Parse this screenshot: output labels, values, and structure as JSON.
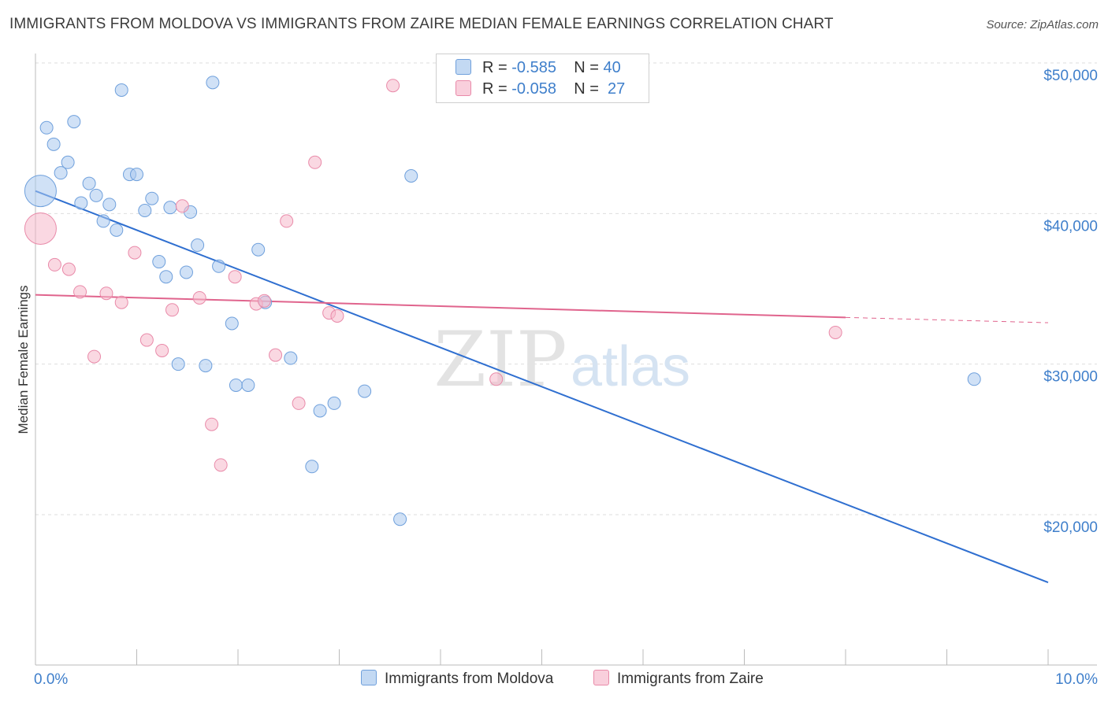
{
  "title": "IMMIGRANTS FROM MOLDOVA VS IMMIGRANTS FROM ZAIRE MEDIAN FEMALE EARNINGS CORRELATION CHART",
  "source": "Source: ZipAtlas.com",
  "watermark": {
    "zip": "ZIP",
    "atlas": "atlas"
  },
  "colors": {
    "moldova": "#a9c8ee",
    "moldova_stroke": "#6fa0dc",
    "moldova_line": "#2f6fd0",
    "zaire": "#f5b8cb",
    "zaire_stroke": "#e98aa9",
    "zaire_line": "#e0648d",
    "axis_text": "#3f7fcb",
    "grid": "#dddddd"
  },
  "legend": {
    "rows": [
      {
        "r_label": "R =",
        "r_value": "-0.585",
        "n_label": "N =",
        "n_value": "40"
      },
      {
        "r_label": "R =",
        "r_value": "-0.058",
        "n_label": "N =",
        "n_value": "27"
      }
    ]
  },
  "bottom_legend": {
    "moldova": "Immigrants from Moldova",
    "zaire": "Immigrants from Zaire"
  },
  "chart_data": {
    "type": "scatter",
    "title": "IMMIGRANTS FROM MOLDOVA VS IMMIGRANTS FROM ZAIRE MEDIAN FEMALE EARNINGS CORRELATION CHART",
    "xlabel": "",
    "ylabel": "Median Female Earnings",
    "xlim": [
      0,
      10
    ],
    "ylim": [
      10000,
      52000
    ],
    "x_tick_labels": [
      "0.0%",
      "10.0%"
    ],
    "y_ticks": [
      20000,
      30000,
      40000,
      50000
    ],
    "y_tick_labels": [
      "$20,000",
      "$30,000",
      "$40,000",
      "$50,000"
    ],
    "series": [
      {
        "name": "Immigrants from Moldova",
        "r": -0.585,
        "n": 40,
        "trend": {
          "x": [
            0.0,
            10.0
          ],
          "y": [
            41500,
            15500
          ]
        },
        "points": [
          {
            "x": 0.05,
            "y": 41500,
            "big": 1
          },
          {
            "x": 0.11,
            "y": 45700
          },
          {
            "x": 0.18,
            "y": 44600
          },
          {
            "x": 0.38,
            "y": 46100
          },
          {
            "x": 0.85,
            "y": 48200
          },
          {
            "x": 1.75,
            "y": 48700
          },
          {
            "x": 0.25,
            "y": 42700
          },
          {
            "x": 0.32,
            "y": 43400
          },
          {
            "x": 0.53,
            "y": 42000
          },
          {
            "x": 0.6,
            "y": 41200
          },
          {
            "x": 0.45,
            "y": 40700
          },
          {
            "x": 0.73,
            "y": 40600
          },
          {
            "x": 0.93,
            "y": 42600
          },
          {
            "x": 1.0,
            "y": 42600
          },
          {
            "x": 1.15,
            "y": 41000
          },
          {
            "x": 1.08,
            "y": 40200
          },
          {
            "x": 1.33,
            "y": 40400
          },
          {
            "x": 1.53,
            "y": 40100
          },
          {
            "x": 0.67,
            "y": 39500
          },
          {
            "x": 0.8,
            "y": 38900
          },
          {
            "x": 1.6,
            "y": 37900
          },
          {
            "x": 2.2,
            "y": 37600
          },
          {
            "x": 1.22,
            "y": 36800
          },
          {
            "x": 1.81,
            "y": 36500
          },
          {
            "x": 1.29,
            "y": 35800
          },
          {
            "x": 1.49,
            "y": 36100
          },
          {
            "x": 2.27,
            "y": 34100
          },
          {
            "x": 1.94,
            "y": 32700
          },
          {
            "x": 2.52,
            "y": 30400
          },
          {
            "x": 1.41,
            "y": 30000
          },
          {
            "x": 1.68,
            "y": 29900
          },
          {
            "x": 1.98,
            "y": 28600
          },
          {
            "x": 2.1,
            "y": 28600
          },
          {
            "x": 3.25,
            "y": 28200
          },
          {
            "x": 2.95,
            "y": 27400
          },
          {
            "x": 2.81,
            "y": 26900
          },
          {
            "x": 2.73,
            "y": 23200
          },
          {
            "x": 3.6,
            "y": 19700
          },
          {
            "x": 3.71,
            "y": 42500
          },
          {
            "x": 9.27,
            "y": 29000
          }
        ]
      },
      {
        "name": "Immigrants from Zaire",
        "r": -0.058,
        "n": 27,
        "trend": {
          "x": [
            0.0,
            8.0
          ],
          "y": [
            34600,
            33100
          ]
        },
        "trend_dashed": {
          "x": [
            8.0,
            10.0
          ],
          "y": [
            33100,
            32750
          ]
        },
        "points": [
          {
            "x": 0.05,
            "y": 39000,
            "big": 1
          },
          {
            "x": 3.53,
            "y": 48500
          },
          {
            "x": 2.76,
            "y": 43400
          },
          {
            "x": 1.45,
            "y": 40500
          },
          {
            "x": 2.48,
            "y": 39500
          },
          {
            "x": 0.98,
            "y": 37400
          },
          {
            "x": 0.19,
            "y": 36600
          },
          {
            "x": 0.33,
            "y": 36300
          },
          {
            "x": 1.97,
            "y": 35800
          },
          {
            "x": 0.44,
            "y": 34800
          },
          {
            "x": 0.7,
            "y": 34700
          },
          {
            "x": 1.62,
            "y": 34400
          },
          {
            "x": 0.85,
            "y": 34100
          },
          {
            "x": 2.18,
            "y": 34000
          },
          {
            "x": 1.35,
            "y": 33600
          },
          {
            "x": 2.9,
            "y": 33400
          },
          {
            "x": 2.98,
            "y": 33200
          },
          {
            "x": 1.1,
            "y": 31600
          },
          {
            "x": 1.25,
            "y": 30900
          },
          {
            "x": 0.58,
            "y": 30500
          },
          {
            "x": 2.37,
            "y": 30600
          },
          {
            "x": 4.55,
            "y": 29000
          },
          {
            "x": 2.6,
            "y": 27400
          },
          {
            "x": 1.74,
            "y": 26000
          },
          {
            "x": 1.83,
            "y": 23300
          },
          {
            "x": 7.9,
            "y": 32100
          },
          {
            "x": 2.26,
            "y": 34200
          }
        ]
      }
    ]
  }
}
